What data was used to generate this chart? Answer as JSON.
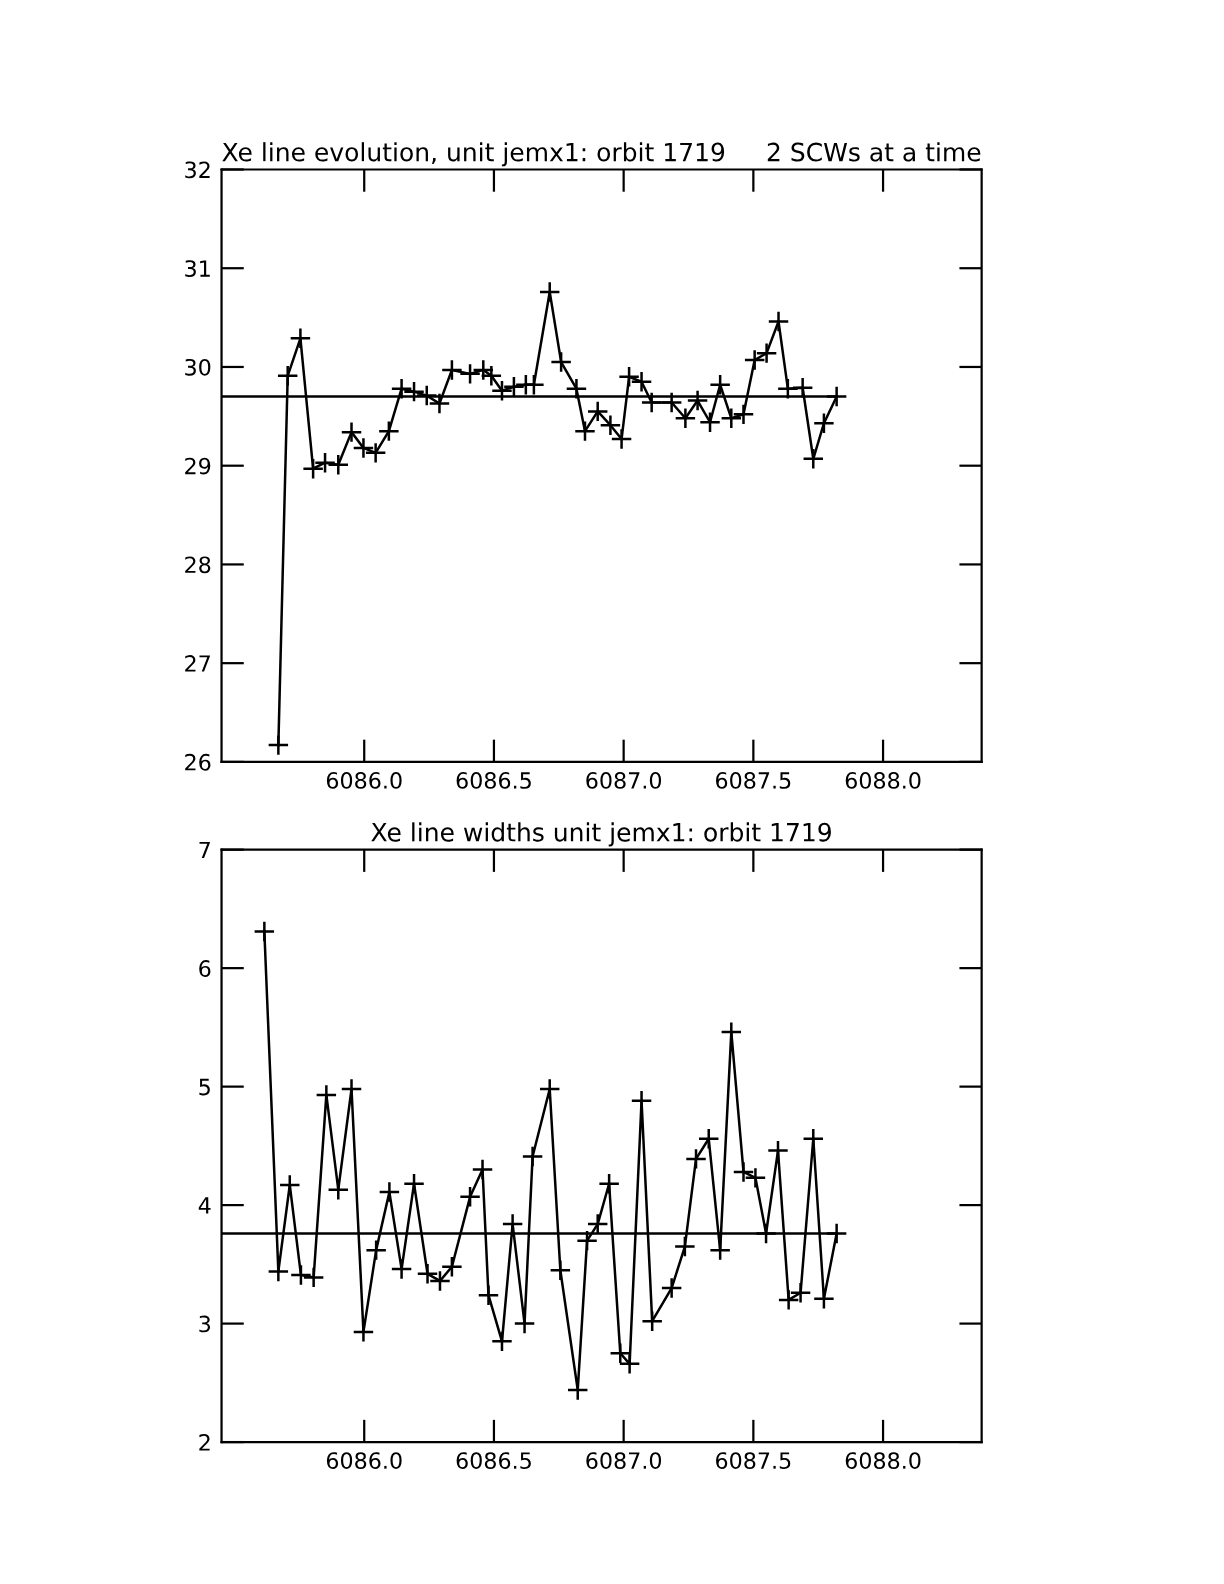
{
  "chart_data": [
    {
      "type": "line",
      "title": "Xe line evolution, unit jemx1: orbit 1719",
      "subtitle": "2 SCWs at a time",
      "marker": "cross",
      "line_style": "solid",
      "grid": false,
      "x": [
        6085.669,
        6085.705,
        6085.754,
        6085.803,
        6085.849,
        6085.9,
        6085.951,
        6085.997,
        6086.044,
        6086.095,
        6086.144,
        6086.192,
        6086.241,
        6086.29,
        6086.338,
        6086.408,
        6086.459,
        6086.49,
        6086.531,
        6086.577,
        6086.623,
        6086.654,
        6086.715,
        6086.759,
        6086.818,
        6086.851,
        6086.9,
        6086.949,
        6086.992,
        6087.021,
        6087.069,
        6087.108,
        6087.185,
        6087.238,
        6087.285,
        6087.333,
        6087.372,
        6087.415,
        6087.462,
        6087.505,
        6087.551,
        6087.597,
        6087.633,
        6087.69,
        6087.731,
        6087.772,
        6087.821
      ],
      "series": [
        {
          "color": "#000000",
          "values": [
            26.17,
            29.91,
            30.29,
            28.97,
            29.03,
            29.01,
            29.34,
            29.18,
            29.13,
            29.35,
            29.78,
            29.75,
            29.71,
            29.63,
            29.97,
            29.93,
            29.97,
            29.91,
            29.76,
            29.8,
            29.82,
            29.82,
            30.76,
            30.05,
            29.78,
            29.35,
            29.55,
            29.41,
            29.27,
            29.9,
            29.85,
            29.64,
            29.64,
            29.48,
            29.66,
            29.44,
            29.82,
            29.48,
            29.52,
            30.07,
            30.14,
            30.46,
            29.78,
            29.79,
            29.07,
            29.43,
            29.7
          ]
        }
      ],
      "ref_lines": [
        {
          "axis": "y",
          "value": 29.7,
          "color": "#000000"
        }
      ],
      "xlim": [
        6085.45,
        6088.38
      ],
      "ylim": [
        26,
        32
      ],
      "xticks": [
        {
          "value": 6086,
          "label": "6086.0"
        },
        {
          "value": 6086.5,
          "label": "6086.5"
        },
        {
          "value": 6087,
          "label": "6087.0"
        },
        {
          "value": 6087.5,
          "label": "6087.5"
        },
        {
          "value": 6088,
          "label": "6088.0"
        }
      ],
      "yticks": [
        26,
        27,
        28,
        29,
        30,
        31,
        32
      ]
    },
    {
      "type": "line",
      "title": "Xe line widths unit jemx1: orbit 1719",
      "marker": "cross",
      "line_style": "solid",
      "grid": false,
      "x": [
        6085.615,
        6085.669,
        6085.713,
        6085.756,
        6085.805,
        6085.854,
        6085.9,
        6085.951,
        6085.997,
        6086.046,
        6086.097,
        6086.144,
        6086.192,
        6086.244,
        6086.292,
        6086.338,
        6086.408,
        6086.456,
        6086.479,
        6086.531,
        6086.572,
        6086.618,
        6086.649,
        6086.715,
        6086.756,
        6086.823,
        6086.859,
        6086.9,
        6086.944,
        6086.987,
        6087.023,
        6087.069,
        6087.11,
        6087.185,
        6087.236,
        6087.279,
        6087.328,
        6087.372,
        6087.415,
        6087.462,
        6087.508,
        6087.549,
        6087.595,
        6087.636,
        6087.682,
        6087.731,
        6087.772,
        6087.821
      ],
      "series": [
        {
          "color": "#000000",
          "values": [
            6.31,
            3.44,
            4.17,
            3.41,
            3.39,
            4.93,
            4.13,
            4.98,
            2.93,
            3.62,
            4.11,
            3.46,
            4.18,
            3.42,
            3.36,
            3.48,
            4.07,
            4.3,
            3.24,
            2.85,
            3.84,
            3.0,
            4.41,
            4.98,
            3.45,
            2.44,
            3.7,
            3.84,
            4.18,
            2.75,
            2.66,
            4.88,
            3.02,
            3.3,
            3.65,
            4.39,
            4.56,
            3.62,
            5.46,
            4.28,
            4.23,
            3.76,
            4.46,
            3.2,
            3.26,
            4.56,
            3.21,
            3.76
          ]
        }
      ],
      "ref_lines": [
        {
          "axis": "y",
          "value": 3.76,
          "color": "#000000"
        }
      ],
      "xlim": [
        6085.45,
        6088.38
      ],
      "ylim": [
        2,
        7
      ],
      "xticks": [
        {
          "value": 6086,
          "label": "6086.0"
        },
        {
          "value": 6086.5,
          "label": "6086.5"
        },
        {
          "value": 6087,
          "label": "6087.0"
        },
        {
          "value": 6087.5,
          "label": "6087.5"
        },
        {
          "value": 6088,
          "label": "6088.0"
        }
      ],
      "yticks": [
        2,
        3,
        4,
        5,
        6,
        7
      ]
    }
  ]
}
